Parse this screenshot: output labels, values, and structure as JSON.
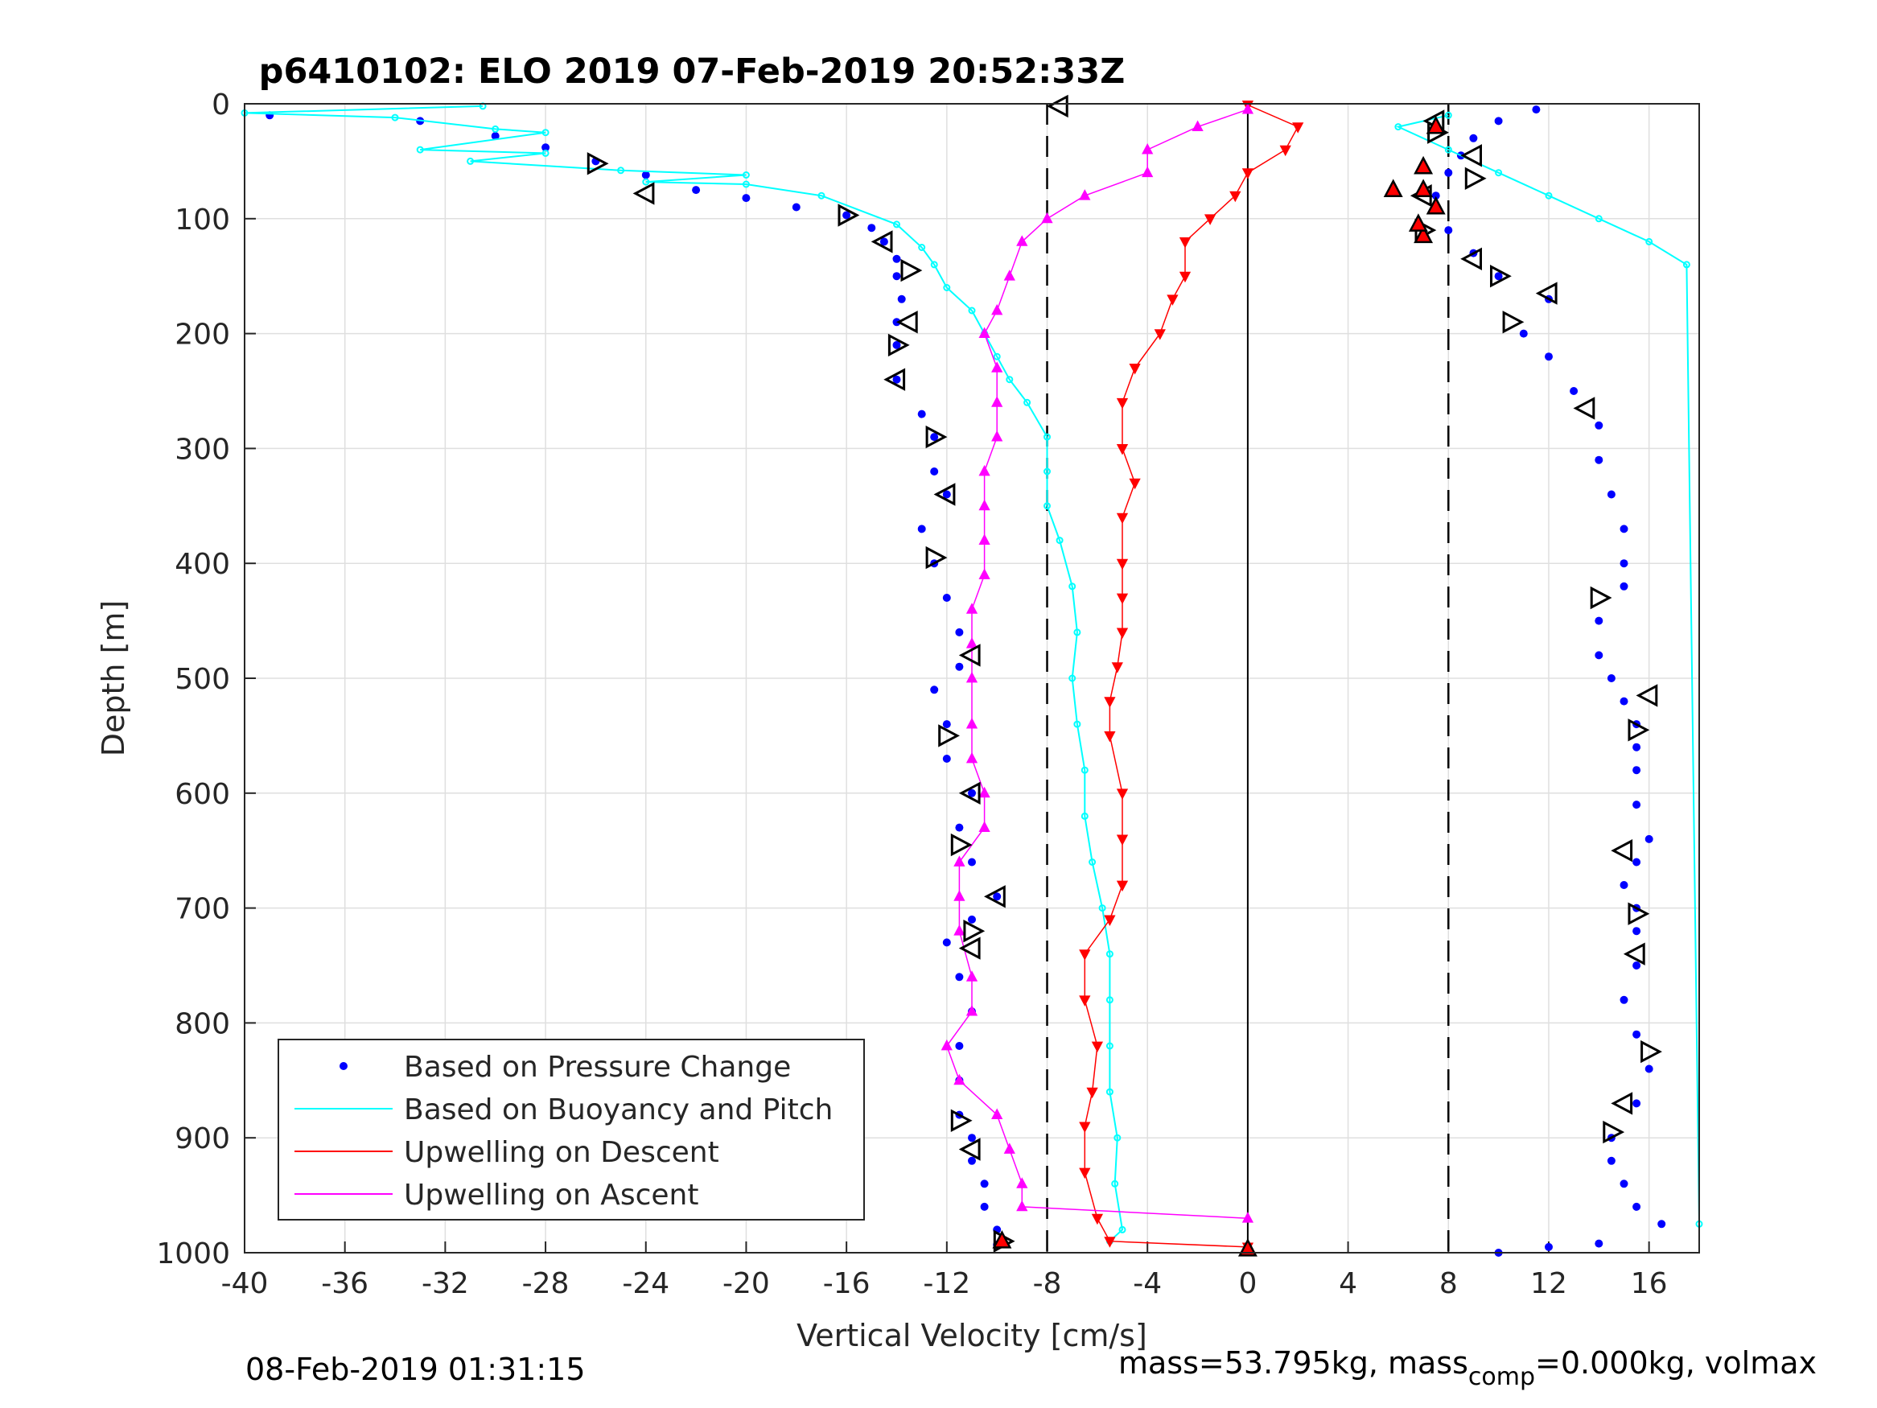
{
  "chart_data": {
    "type": "scatter",
    "title": "p6410102: ELO 2019 07-Feb-2019 20:52:33Z",
    "xlabel": "Vertical Velocity [cm/s]",
    "ylabel": "Depth [m]",
    "xlim": [
      -40,
      18
    ],
    "ylim": [
      0,
      1000
    ],
    "y_reversed": true,
    "grid": true,
    "legend_position": "bottom-left",
    "xticks": [
      "-40",
      "-36",
      "-32",
      "-28",
      "-24",
      "-20",
      "-16",
      "-12",
      "-8",
      "-4",
      "0",
      "4",
      "8",
      "12",
      "16"
    ],
    "yticks": [
      "0",
      "100",
      "200",
      "300",
      "400",
      "500",
      "600",
      "700",
      "800",
      "900",
      "1000"
    ],
    "reference_lines": {
      "solid_x": 0,
      "dashed_x": [
        -8,
        8
      ]
    },
    "series": [
      {
        "name": "Based on Pressure Change",
        "color": "#0000ff",
        "marker": "dot",
        "descent": [
          [
            -39,
            10
          ],
          [
            -33,
            15
          ],
          [
            -30,
            28
          ],
          [
            -28,
            38
          ],
          [
            -26,
            50
          ],
          [
            -24,
            62
          ],
          [
            -22,
            75
          ],
          [
            -20,
            82
          ],
          [
            -18,
            90
          ],
          [
            -16,
            97
          ],
          [
            -15,
            108
          ],
          [
            -14.5,
            120
          ],
          [
            -14,
            135
          ],
          [
            -14,
            150
          ],
          [
            -13.8,
            170
          ],
          [
            -14,
            190
          ],
          [
            -14,
            210
          ],
          [
            -14,
            240
          ],
          [
            -13,
            270
          ],
          [
            -12.5,
            290
          ],
          [
            -12.5,
            320
          ],
          [
            -12,
            340
          ],
          [
            -13,
            370
          ],
          [
            -12.5,
            400
          ],
          [
            -12,
            430
          ],
          [
            -11.5,
            460
          ],
          [
            -11.5,
            490
          ],
          [
            -12.5,
            510
          ],
          [
            -12,
            540
          ],
          [
            -12,
            570
          ],
          [
            -11,
            600
          ],
          [
            -11.5,
            630
          ],
          [
            -11,
            660
          ],
          [
            -10,
            690
          ],
          [
            -11,
            710
          ],
          [
            -12,
            730
          ],
          [
            -11.5,
            760
          ],
          [
            -11,
            790
          ],
          [
            -11.5,
            820
          ],
          [
            -11.5,
            850
          ],
          [
            -11.5,
            880
          ],
          [
            -11,
            900
          ],
          [
            -11,
            920
          ],
          [
            -10.5,
            940
          ],
          [
            -10.5,
            960
          ],
          [
            -10,
            980
          ],
          [
            -10,
            993
          ]
        ],
        "ascent": [
          [
            10,
            1000
          ],
          [
            12,
            995
          ],
          [
            14,
            992
          ],
          [
            16.5,
            975
          ],
          [
            15.5,
            960
          ],
          [
            15,
            940
          ],
          [
            14.5,
            920
          ],
          [
            14.5,
            900
          ],
          [
            15.5,
            870
          ],
          [
            16,
            840
          ],
          [
            15.5,
            810
          ],
          [
            15,
            780
          ],
          [
            15.5,
            750
          ],
          [
            15.5,
            720
          ],
          [
            15.5,
            700
          ],
          [
            15,
            680
          ],
          [
            15.5,
            660
          ],
          [
            16,
            640
          ],
          [
            15.5,
            610
          ],
          [
            15.5,
            580
          ],
          [
            15.5,
            560
          ],
          [
            15.5,
            540
          ],
          [
            15,
            520
          ],
          [
            14.5,
            500
          ],
          [
            14,
            480
          ],
          [
            14,
            450
          ],
          [
            15,
            420
          ],
          [
            15,
            400
          ],
          [
            15,
            370
          ],
          [
            14.5,
            340
          ],
          [
            14,
            310
          ],
          [
            14,
            280
          ],
          [
            13,
            250
          ],
          [
            12,
            220
          ],
          [
            11,
            200
          ],
          [
            12,
            170
          ],
          [
            10,
            150
          ],
          [
            9,
            130
          ],
          [
            8,
            110
          ],
          [
            7.5,
            80
          ],
          [
            8,
            60
          ],
          [
            8.5,
            45
          ],
          [
            9,
            30
          ],
          [
            10,
            15
          ],
          [
            11.5,
            5
          ]
        ]
      },
      {
        "name": "Based on Buoyancy and Pitch",
        "color": "#00ffff",
        "marker": "line",
        "descent": [
          [
            -30.5,
            2
          ],
          [
            -40,
            8
          ],
          [
            -34,
            12
          ],
          [
            -30,
            22
          ],
          [
            -28,
            25
          ],
          [
            -33,
            40
          ],
          [
            -28,
            43
          ],
          [
            -31,
            50
          ],
          [
            -25,
            58
          ],
          [
            -20,
            62
          ],
          [
            -24,
            68
          ],
          [
            -20,
            70
          ],
          [
            -17,
            80
          ],
          [
            -14,
            105
          ],
          [
            -13,
            125
          ],
          [
            -12.5,
            140
          ],
          [
            -12,
            160
          ],
          [
            -11,
            180
          ],
          [
            -10.5,
            200
          ],
          [
            -10,
            220
          ],
          [
            -9.5,
            240
          ],
          [
            -8.8,
            260
          ],
          [
            -8,
            290
          ],
          [
            -8,
            320
          ],
          [
            -8,
            350
          ],
          [
            -7.5,
            380
          ],
          [
            -7,
            420
          ],
          [
            -6.8,
            460
          ],
          [
            -7,
            500
          ],
          [
            -6.8,
            540
          ],
          [
            -6.5,
            580
          ],
          [
            -6.5,
            620
          ],
          [
            -6.2,
            660
          ],
          [
            -5.8,
            700
          ],
          [
            -5.5,
            740
          ],
          [
            -5.5,
            780
          ],
          [
            -5.5,
            820
          ],
          [
            -5.5,
            860
          ],
          [
            -5.2,
            900
          ],
          [
            -5.3,
            940
          ],
          [
            -5,
            980
          ],
          [
            -5.5,
            990
          ]
        ],
        "ascent": [
          [
            18,
            975
          ],
          [
            17.5,
            140
          ],
          [
            16,
            120
          ],
          [
            14,
            100
          ],
          [
            12,
            80
          ],
          [
            10,
            60
          ],
          [
            8,
            40
          ],
          [
            6,
            20
          ],
          [
            8,
            10
          ]
        ]
      },
      {
        "name": "Upwelling on Descent",
        "color": "#ff0000",
        "marker": "triangle-down",
        "values": [
          [
            0,
            1
          ],
          [
            2,
            20
          ],
          [
            1.5,
            40
          ],
          [
            0,
            60
          ],
          [
            -0.5,
            80
          ],
          [
            -1.5,
            100
          ],
          [
            -2.5,
            120
          ],
          [
            -2.5,
            150
          ],
          [
            -3,
            170
          ],
          [
            -3.5,
            200
          ],
          [
            -4.5,
            230
          ],
          [
            -5,
            260
          ],
          [
            -5,
            300
          ],
          [
            -4.5,
            330
          ],
          [
            -5,
            360
          ],
          [
            -5,
            400
          ],
          [
            -5,
            430
          ],
          [
            -5,
            460
          ],
          [
            -5.2,
            490
          ],
          [
            -5.5,
            520
          ],
          [
            -5.5,
            550
          ],
          [
            -5,
            600
          ],
          [
            -5,
            640
          ],
          [
            -5,
            680
          ],
          [
            -5.5,
            710
          ],
          [
            -6.5,
            740
          ],
          [
            -6.5,
            780
          ],
          [
            -6,
            820
          ],
          [
            -6.2,
            860
          ],
          [
            -6.5,
            890
          ],
          [
            -6.5,
            930
          ],
          [
            -6,
            970
          ],
          [
            -5.5,
            990
          ],
          [
            0,
            995
          ]
        ]
      },
      {
        "name": "Upwelling on Ascent",
        "color": "#ff00ff",
        "marker": "triangle-up",
        "values": [
          [
            0,
            970
          ],
          [
            -9,
            960
          ],
          [
            -9,
            940
          ],
          [
            -9.5,
            910
          ],
          [
            -10,
            880
          ],
          [
            -11.5,
            850
          ],
          [
            -12,
            820
          ],
          [
            -11,
            790
          ],
          [
            -11,
            760
          ],
          [
            -11.5,
            720
          ],
          [
            -11.5,
            690
          ],
          [
            -11.5,
            660
          ],
          [
            -10.5,
            630
          ],
          [
            -10.5,
            600
          ],
          [
            -11,
            570
          ],
          [
            -11,
            540
          ],
          [
            -11,
            500
          ],
          [
            -11,
            470
          ],
          [
            -11,
            440
          ],
          [
            -10.5,
            410
          ],
          [
            -10.5,
            380
          ],
          [
            -10.5,
            350
          ],
          [
            -10.5,
            320
          ],
          [
            -10,
            290
          ],
          [
            -10,
            260
          ],
          [
            -10,
            230
          ],
          [
            -10.5,
            200
          ],
          [
            -10,
            180
          ],
          [
            -9.5,
            150
          ],
          [
            -9,
            120
          ],
          [
            -8,
            100
          ],
          [
            -6.5,
            80
          ],
          [
            -4,
            60
          ],
          [
            -4,
            40
          ],
          [
            -2,
            20
          ],
          [
            0,
            5
          ]
        ]
      }
    ],
    "pressure_change_markers": {
      "description": "",
      "open_triangles": [
        [
          -7.5,
          2
        ],
        [
          -26,
          52
        ],
        [
          -24,
          78
        ],
        [
          -16,
          97
        ],
        [
          -14.5,
          120
        ],
        [
          -13.5,
          145
        ],
        [
          -13.5,
          190
        ],
        [
          -14,
          210
        ],
        [
          -14,
          240
        ],
        [
          -12.5,
          290
        ],
        [
          -12,
          340
        ],
        [
          -12.5,
          395
        ],
        [
          -11,
          480
        ],
        [
          -12,
          550
        ],
        [
          -11,
          600
        ],
        [
          -11.5,
          645
        ],
        [
          -10,
          690
        ],
        [
          -11,
          720
        ],
        [
          -11,
          735
        ],
        [
          -11.5,
          885
        ],
        [
          -11,
          910
        ],
        [
          -9.8,
          990
        ],
        [
          7.5,
          15
        ],
        [
          7.5,
          25
        ],
        [
          9,
          45
        ],
        [
          9,
          65
        ],
        [
          7,
          80
        ],
        [
          7,
          110
        ],
        [
          9,
          135
        ],
        [
          10,
          150
        ],
        [
          12,
          165
        ],
        [
          10.5,
          190
        ],
        [
          13.5,
          265
        ],
        [
          14,
          430
        ],
        [
          16,
          515
        ],
        [
          15.5,
          545
        ],
        [
          15,
          650
        ],
        [
          15.5,
          705
        ],
        [
          15.5,
          740
        ],
        [
          16,
          825
        ],
        [
          15,
          870
        ],
        [
          14.5,
          895
        ]
      ],
      "red_up": [
        [
          0,
          997
        ],
        [
          -9.8,
          990
        ],
        [
          5.8,
          75
        ],
        [
          7,
          55
        ],
        [
          7,
          75
        ],
        [
          7.5,
          90
        ],
        [
          7,
          115
        ],
        [
          6.8,
          105
        ],
        [
          7.5,
          20
        ]
      ]
    }
  },
  "legend": {
    "entries": [
      "Based on Pressure Change",
      "Based on Buoyancy and Pitch",
      "Upwelling on Descent",
      "Upwelling on Ascent"
    ]
  },
  "footer": {
    "timestamp": "08-Feb-2019 01:31:15",
    "mass_text": "mass=53.795kg, mass",
    "mass_sub": "comp",
    "mass_rest": "=0.000kg, volmax"
  }
}
